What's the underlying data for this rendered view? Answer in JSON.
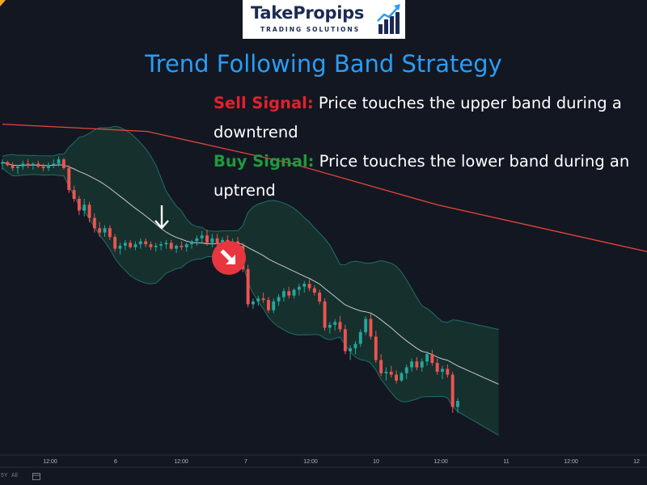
{
  "logo": {
    "name": "TakePropips",
    "tagline": "TRADING SOLUTIONS",
    "icon": "bar-chart-up-arrow-icon"
  },
  "title": "Trend Following Band Strategy",
  "sell_signal": {
    "label": "Sell Signal:",
    "text": "Price touches the upper band during a downtrend",
    "color": "#e2212b"
  },
  "buy_signal": {
    "label": "Buy Signal:",
    "text": "Price touches the lower band during an uptrend",
    "color": "#1f9a3c"
  },
  "markers": {
    "sell_marker": "down-arrow-icon",
    "badge": "down-right-arrow-circle-icon"
  },
  "bottom_bar": {
    "range_1": "5Y",
    "range_2": "All",
    "icon": "calendar-goto-icon"
  },
  "colors": {
    "background": "#131722",
    "bull": "#26a69a",
    "bear": "#ef5350",
    "band": "#1f6e68",
    "band_fill": "#17302f",
    "middle_line": "#c8c8c8",
    "trend_line": "#e8453c",
    "title": "#2a9df4"
  },
  "chart_data": {
    "type": "candlestick",
    "x_ticks": [
      "12:00",
      "6",
      "12:00",
      "7",
      "12:00",
      "10",
      "12:00",
      "11",
      "12:00",
      "12"
    ],
    "legend": "none",
    "grid": false,
    "series": [
      {
        "kind": "candles",
        "ohlc": [
          [
            200,
            203,
            196,
            201
          ],
          [
            201,
            202,
            198,
            199
          ],
          [
            199,
            201,
            195,
            197
          ],
          [
            197,
            199,
            193,
            198
          ],
          [
            198,
            202,
            196,
            200
          ],
          [
            200,
            203,
            197,
            199
          ],
          [
            199,
            201,
            196,
            200
          ],
          [
            200,
            202,
            197,
            198
          ],
          [
            198,
            200,
            195,
            197
          ],
          [
            197,
            201,
            195,
            199
          ],
          [
            199,
            203,
            197,
            200
          ],
          [
            200,
            205,
            198,
            203
          ],
          [
            203,
            204,
            196,
            197
          ],
          [
            197,
            199,
            180,
            182
          ],
          [
            182,
            185,
            174,
            176
          ],
          [
            176,
            178,
            165,
            168
          ],
          [
            168,
            176,
            164,
            172
          ],
          [
            172,
            174,
            160,
            163
          ],
          [
            163,
            166,
            153,
            156
          ],
          [
            156,
            160,
            150,
            153
          ],
          [
            153,
            158,
            150,
            156
          ],
          [
            156,
            158,
            148,
            150
          ],
          [
            150,
            152,
            140,
            142
          ],
          [
            142,
            146,
            138,
            144
          ],
          [
            144,
            148,
            141,
            146
          ],
          [
            146,
            148,
            142,
            143
          ],
          [
            143,
            147,
            141,
            145
          ],
          [
            145,
            149,
            142,
            147
          ],
          [
            147,
            149,
            143,
            145
          ],
          [
            145,
            147,
            141,
            143
          ],
          [
            143,
            146,
            140,
            144
          ],
          [
            144,
            147,
            141,
            145
          ],
          [
            145,
            148,
            142,
            146
          ],
          [
            146,
            148,
            141,
            142
          ],
          [
            142,
            145,
            139,
            144
          ],
          [
            144,
            147,
            141,
            143
          ],
          [
            143,
            146,
            140,
            145
          ],
          [
            145,
            148,
            142,
            147
          ],
          [
            147,
            151,
            144,
            149
          ],
          [
            149,
            154,
            146,
            151
          ],
          [
            151,
            155,
            144,
            146
          ],
          [
            146,
            152,
            143,
            149
          ],
          [
            149,
            152,
            143,
            145
          ],
          [
            145,
            150,
            142,
            148
          ],
          [
            148,
            151,
            144,
            146
          ],
          [
            146,
            149,
            142,
            147
          ],
          [
            147,
            150,
            143,
            144
          ],
          [
            144,
            146,
            126,
            128
          ],
          [
            128,
            131,
            102,
            104
          ],
          [
            104,
            108,
            101,
            106
          ],
          [
            106,
            110,
            103,
            108
          ],
          [
            108,
            112,
            105,
            107
          ],
          [
            107,
            109,
            98,
            100
          ],
          [
            100,
            108,
            98,
            106
          ],
          [
            106,
            111,
            103,
            109
          ],
          [
            109,
            115,
            106,
            113
          ],
          [
            113,
            116,
            108,
            110
          ],
          [
            110,
            115,
            108,
            114
          ],
          [
            114,
            118,
            110,
            116
          ],
          [
            116,
            120,
            112,
            118
          ],
          [
            118,
            121,
            113,
            115
          ],
          [
            115,
            117,
            110,
            112
          ],
          [
            112,
            114,
            104,
            106
          ],
          [
            106,
            108,
            86,
            88
          ],
          [
            88,
            92,
            84,
            90
          ],
          [
            90,
            94,
            86,
            92
          ],
          [
            92,
            96,
            85,
            87
          ],
          [
            87,
            90,
            70,
            72
          ],
          [
            72,
            76,
            66,
            74
          ],
          [
            74,
            79,
            70,
            77
          ],
          [
            77,
            87,
            75,
            85
          ],
          [
            85,
            96,
            83,
            94
          ],
          [
            94,
            98,
            80,
            82
          ],
          [
            82,
            86,
            64,
            66
          ],
          [
            66,
            70,
            55,
            57
          ],
          [
            57,
            61,
            52,
            58
          ],
          [
            58,
            62,
            54,
            56
          ],
          [
            56,
            59,
            50,
            52
          ],
          [
            52,
            58,
            51,
            57
          ],
          [
            57,
            63,
            53,
            61
          ],
          [
            61,
            67,
            58,
            65
          ],
          [
            65,
            68,
            59,
            61
          ],
          [
            61,
            67,
            58,
            65
          ],
          [
            65,
            72,
            62,
            70
          ],
          [
            70,
            73,
            62,
            64
          ],
          [
            64,
            67,
            56,
            58
          ],
          [
            58,
            62,
            53,
            60
          ],
          [
            60,
            63,
            54,
            56
          ],
          [
            56,
            58,
            30,
            34
          ],
          [
            34,
            40,
            30,
            38
          ]
        ]
      },
      {
        "kind": "line",
        "name": "",
        "color": "#e8453c",
        "x": [
          0,
          20,
          40,
          60,
          89
        ],
        "y": [
          227,
          222,
          200,
          172,
          140
        ]
      }
    ],
    "band_period": 20,
    "band_width_sd": 2,
    "y_range": [
      0,
      240
    ]
  }
}
